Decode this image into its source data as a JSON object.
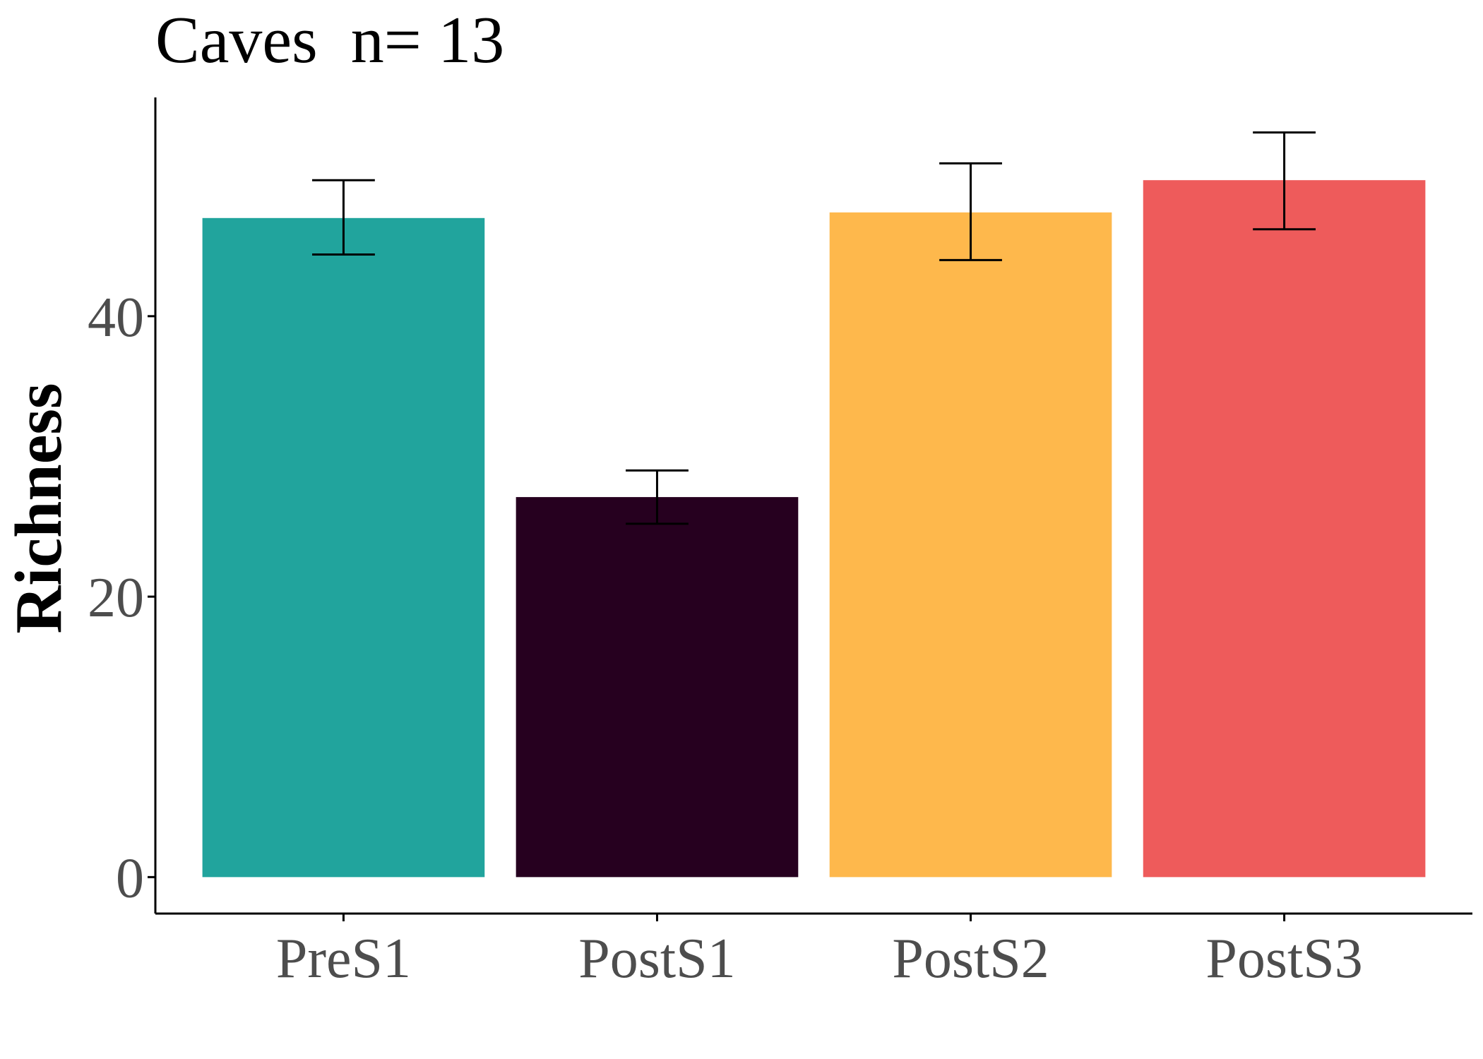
{
  "chart_data": {
    "type": "bar",
    "title": "Caves  n= 13",
    "xlabel": "",
    "ylabel": "Richness",
    "categories": [
      "PreS1",
      "PostS1",
      "PostS2",
      "PostS3"
    ],
    "values": [
      47.0,
      27.1,
      47.4,
      49.7
    ],
    "error_low": [
      44.4,
      25.2,
      44.0,
      46.2
    ],
    "error_high": [
      49.7,
      29.0,
      50.9,
      53.1
    ],
    "colors": [
      "#21A49D",
      "#26001F",
      "#FEB84C",
      "#EE5B5B"
    ],
    "ylim": [
      -2.6,
      55.6
    ],
    "yticks": [
      0,
      20,
      40
    ],
    "ytick_labels": [
      "0",
      "20",
      "40"
    ],
    "grid": false,
    "legend": "none"
  }
}
